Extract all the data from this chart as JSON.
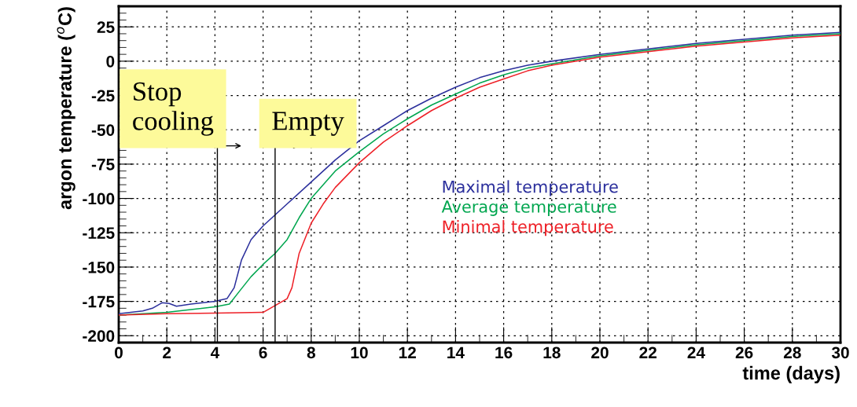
{
  "chart_data": {
    "type": "line",
    "xlabel": "time (days)",
    "ylabel": "argon temperature ($^{o}$C)",
    "xlim": [
      0,
      30
    ],
    "xticks": [
      0,
      2,
      4,
      6,
      8,
      10,
      12,
      14,
      16,
      18,
      20,
      22,
      24,
      26,
      28,
      30
    ],
    "ylim": [
      -205,
      40
    ],
    "yticks": [
      -200,
      -175,
      -150,
      -125,
      -100,
      -75,
      -50,
      -25,
      0,
      25
    ],
    "grid": true,
    "legend": "center",
    "line_style": "solid",
    "marker": "none",
    "ref_lines": [
      {
        "axis": "x",
        "value": 4.1,
        "label": "Stop\ncooling"
      },
      {
        "axis": "x",
        "value": 6.5,
        "label": "Empty"
      }
    ],
    "series": [
      {
        "name": "Maximal temperature",
        "color": "#2b2f9c",
        "x": [
          0,
          1,
          1.4,
          1.8,
          2.1,
          2.4,
          3,
          4,
          4.5,
          4.8,
          5.1,
          5.5,
          6,
          6.5,
          7,
          8,
          9,
          10,
          11,
          12,
          13,
          14,
          15,
          16,
          17,
          18,
          20,
          22,
          24,
          26,
          28,
          30
        ],
        "values": [
          -184,
          -182,
          -180,
          -176,
          -176.5,
          -178.5,
          -177,
          -175,
          -173,
          -165,
          -145,
          -130,
          -120,
          -112,
          -104,
          -88,
          -72,
          -58,
          -47,
          -36,
          -27,
          -19,
          -12,
          -7,
          -3,
          0,
          5,
          9,
          13,
          16,
          19,
          21
        ]
      },
      {
        "name": "Average temperature",
        "color": "#00a64f",
        "x": [
          0,
          2,
          3,
          4,
          4.6,
          5,
          5.5,
          6,
          6.5,
          7,
          7.5,
          8,
          9,
          10,
          11,
          12,
          13,
          14,
          15,
          16,
          17,
          18,
          20,
          22,
          24,
          26,
          28,
          30
        ],
        "values": [
          -185,
          -183,
          -181,
          -179,
          -177,
          -168,
          -157,
          -148,
          -140,
          -130,
          -114,
          -100,
          -80,
          -66,
          -53,
          -42,
          -32,
          -24,
          -16,
          -10,
          -5,
          -2,
          4,
          8,
          12,
          15,
          18,
          20
        ]
      },
      {
        "name": "Minimal temperature",
        "color": "#ee2027",
        "x": [
          0,
          2,
          4,
          6,
          6.5,
          7,
          7.2,
          7.5,
          8,
          8.5,
          9,
          10,
          11,
          12,
          13,
          14,
          15,
          16,
          17,
          18,
          20,
          22,
          24,
          26,
          28,
          30
        ],
        "values": [
          -185,
          -184,
          -183.5,
          -183,
          -178,
          -173,
          -165,
          -140,
          -118,
          -104,
          -92,
          -74,
          -59,
          -47,
          -36,
          -27,
          -19,
          -13,
          -7,
          -3,
          3,
          7,
          11,
          14,
          17,
          19
        ]
      }
    ]
  }
}
